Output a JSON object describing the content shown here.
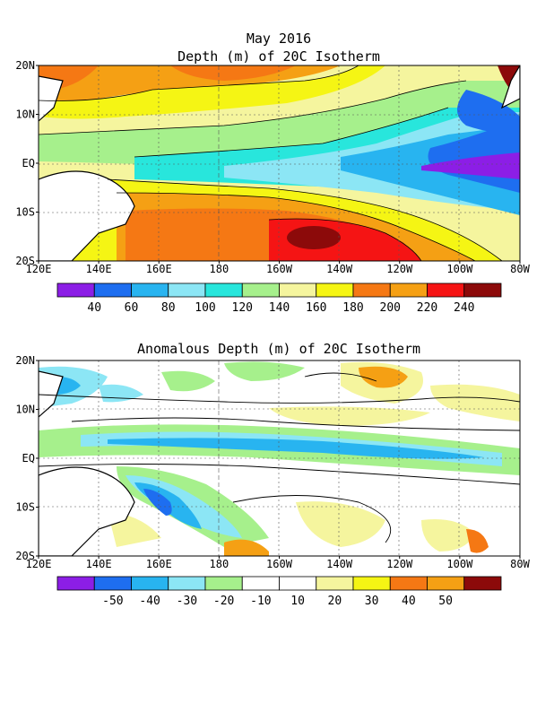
{
  "page": {
    "title_line1": "May 2016",
    "panel1_title": "Depth (m) of 20C Isotherm",
    "panel2_title": "Anomalous Depth (m) of 20C Isotherm"
  },
  "axes": {
    "lon_labels": [
      "120E",
      "140E",
      "160E",
      "180",
      "160W",
      "140W",
      "120W",
      "100W",
      "80W"
    ],
    "lat_labels": [
      "20N",
      "10N",
      "EQ",
      "10S",
      "20S"
    ]
  },
  "colorbar1": {
    "colors": [
      "#8c1ee6",
      "#1e6ef0",
      "#28b4f0",
      "#8ce6f5",
      "#28e6dc",
      "#a6f08c",
      "#f5f59e",
      "#f5f514",
      "#f57814",
      "#f5a014",
      "#f51414",
      "#8c0a0a"
    ],
    "labels": [
      "40",
      "60",
      "80",
      "100",
      "120",
      "140",
      "160",
      "180",
      "200",
      "220",
      "240"
    ]
  },
  "colorbar2": {
    "colors": [
      "#8c1ee6",
      "#1e6ef0",
      "#28b4f0",
      "#8ce6f5",
      "#a6f08c",
      "#ffffff",
      "#ffffff",
      "#f5f59e",
      "#f5f514",
      "#f57814",
      "#f5a014",
      "#8c0a0a"
    ],
    "labels": [
      "-50",
      "-40",
      "-30",
      "-20",
      "-10",
      "10",
      "20",
      "30",
      "40",
      "50"
    ]
  }
}
